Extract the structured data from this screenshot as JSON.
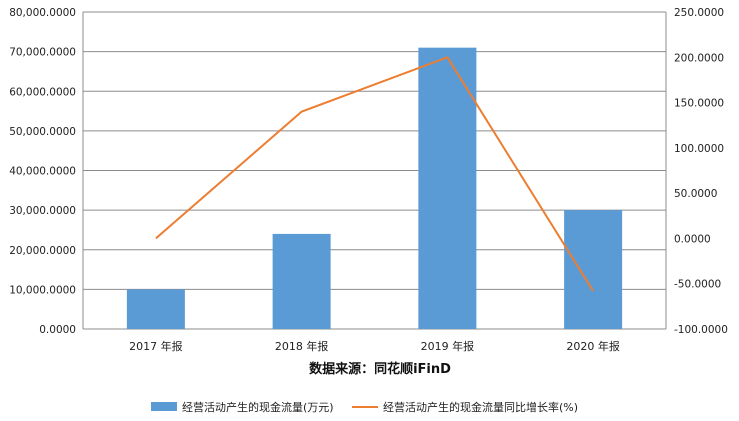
{
  "chart_data": {
    "type": "bar+line",
    "categories": [
      "2017 年报",
      "2018 年报",
      "2019 年报",
      "2020 年报"
    ],
    "series": [
      {
        "name": "经营活动产生的现金流量(万元)",
        "type": "bar",
        "axis": "left",
        "color": "#5B9BD5",
        "values": [
          10000,
          24000,
          71000,
          30000
        ]
      },
      {
        "name": "经营活动产生的现金流量同比增长率(%)",
        "type": "line",
        "axis": "right",
        "color": "#ED7D31",
        "values": [
          0,
          140,
          200,
          -58
        ]
      }
    ],
    "y_left": {
      "min": 0,
      "max": 80000,
      "step": 10000,
      "tick_labels": [
        "0.0000",
        "10,000.0000",
        "20,000.0000",
        "30,000.0000",
        "40,000.0000",
        "50,000.0000",
        "60,000.0000",
        "70,000.0000",
        "80,000.0000"
      ]
    },
    "y_right": {
      "min": -100,
      "max": 250,
      "step": 50,
      "tick_labels": [
        "-100.0000",
        "-50.0000",
        "0.0000",
        "50.0000",
        "100.0000",
        "150.0000",
        "200.0000",
        "250.0000"
      ]
    },
    "source_note": "数据来源：同花顺iFinD",
    "grid": true,
    "legend": "bottom"
  }
}
